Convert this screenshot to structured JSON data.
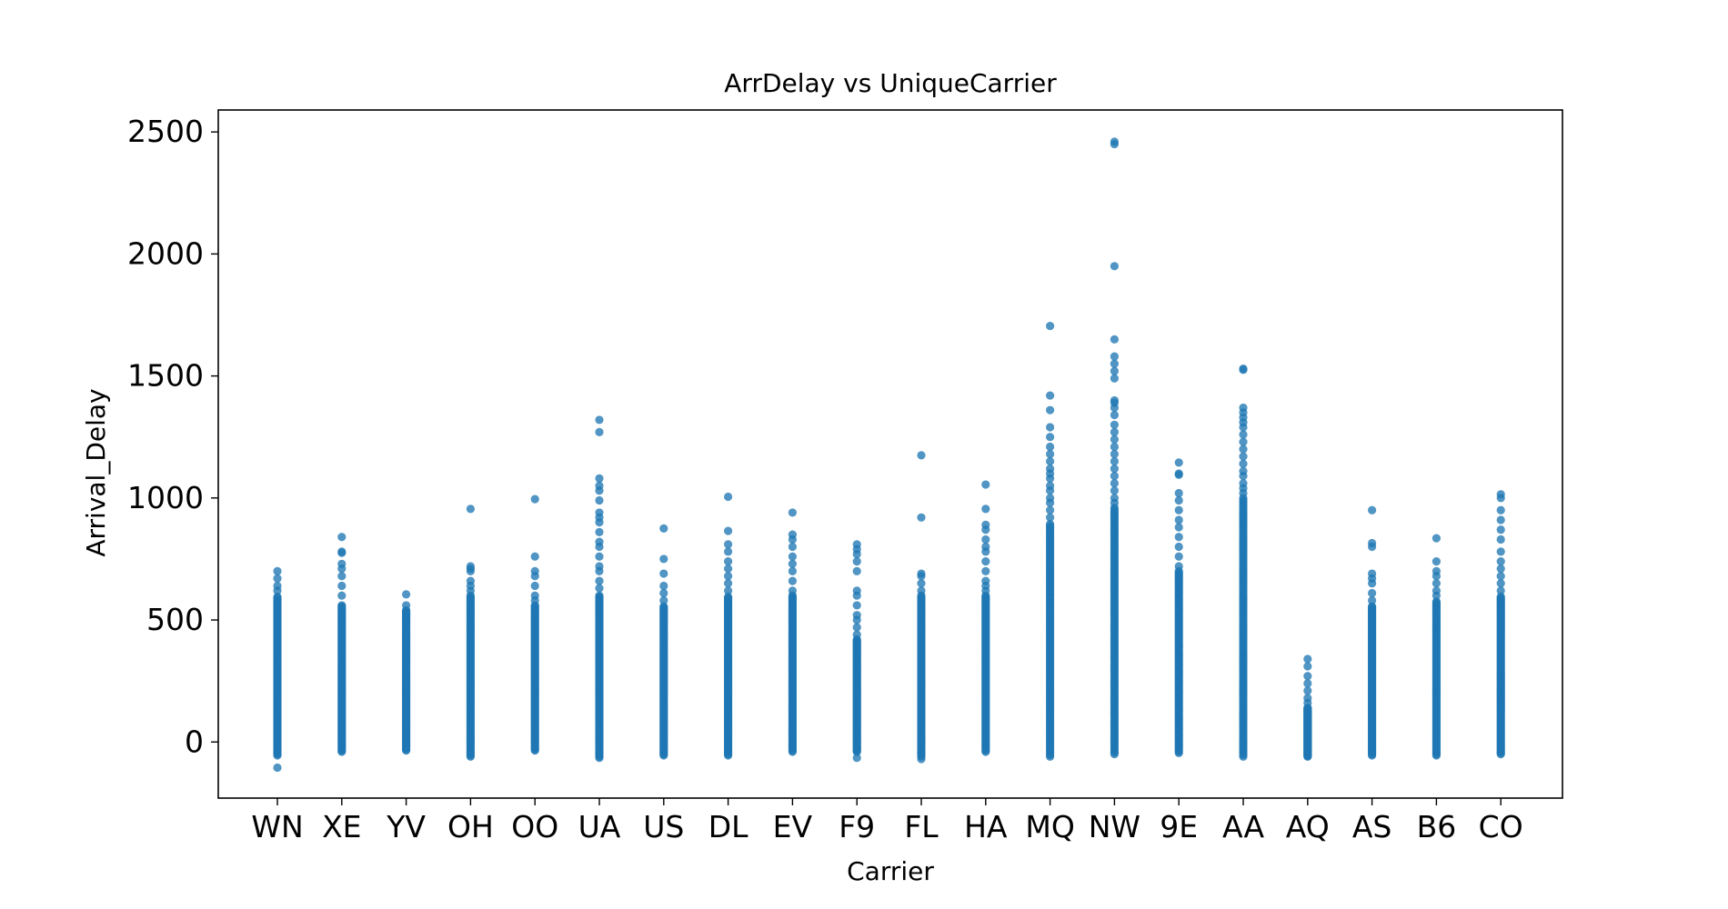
{
  "chart_data": {
    "type": "scatter",
    "title": "ArrDelay vs UniqueCarrier",
    "xlabel": "Carrier",
    "ylabel": "Arrival_Delay",
    "categories": [
      "WN",
      "XE",
      "YV",
      "OH",
      "OO",
      "UA",
      "US",
      "DL",
      "EV",
      "F9",
      "FL",
      "HA",
      "MQ",
      "NW",
      "9E",
      "AA",
      "AQ",
      "AS",
      "B6",
      "CO"
    ],
    "ylim": [
      -230,
      2590
    ],
    "yticks": [
      0,
      500,
      1000,
      1500,
      2000,
      2500
    ],
    "grid": false,
    "legend": "none",
    "series_color": "#1f77b4",
    "marker": "circle",
    "points": {
      "WN": {
        "range": [
          -55,
          600
        ],
        "outliers": [
          -105,
          620,
          640,
          670,
          700
        ]
      },
      "XE": {
        "range": [
          -40,
          560
        ],
        "outliers": [
          600,
          640,
          680,
          710,
          730,
          775,
          780,
          840
        ]
      },
      "YV": {
        "range": [
          -35,
          540
        ],
        "outliers": [
          560,
          605
        ]
      },
      "OH": {
        "range": [
          -60,
          600
        ],
        "outliers": [
          620,
          640,
          660,
          700,
          710,
          720,
          955
        ]
      },
      "OO": {
        "range": [
          -35,
          560
        ],
        "outliers": [
          580,
          600,
          640,
          680,
          700,
          760,
          995
        ]
      },
      "UA": {
        "range": [
          -65,
          600
        ],
        "outliers": [
          630,
          660,
          700,
          720,
          760,
          800,
          820,
          860,
          900,
          920,
          940,
          990,
          1030,
          1050,
          1080,
          1270,
          1320
        ]
      },
      "US": {
        "range": [
          -55,
          560
        ],
        "outliers": [
          580,
          610,
          640,
          690,
          750,
          875
        ]
      },
      "DL": {
        "range": [
          -55,
          600
        ],
        "outliers": [
          620,
          650,
          680,
          710,
          740,
          780,
          810,
          865,
          1005
        ]
      },
      "EV": {
        "range": [
          -40,
          600
        ],
        "outliers": [
          620,
          660,
          700,
          730,
          760,
          800,
          830,
          850,
          940
        ]
      },
      "F9": {
        "range": [
          -40,
          420
        ],
        "outliers": [
          440,
          470,
          500,
          520,
          560,
          600,
          620,
          700,
          740,
          770,
          790,
          810,
          -65
        ]
      },
      "FL": {
        "range": [
          -60,
          600
        ],
        "outliers": [
          620,
          650,
          680,
          690,
          920,
          1175,
          -70
        ]
      },
      "HA": {
        "range": [
          -40,
          600
        ],
        "outliers": [
          620,
          640,
          660,
          700,
          740,
          780,
          800,
          830,
          870,
          890,
          955,
          1055
        ]
      },
      "MQ": {
        "range": [
          -60,
          900
        ],
        "outliers": [
          920,
          950,
          980,
          1000,
          1030,
          1050,
          1080,
          1100,
          1120,
          1150,
          1180,
          1210,
          1250,
          1290,
          1360,
          1420,
          1705
        ]
      },
      "NW": {
        "range": [
          -50,
          960
        ],
        "outliers": [
          980,
          1000,
          1030,
          1060,
          1090,
          1120,
          1150,
          1180,
          1210,
          1240,
          1270,
          1300,
          1340,
          1370,
          1390,
          1400,
          1490,
          1520,
          1550,
          1580,
          1650,
          1950,
          2450,
          2460
        ]
      },
      "9E": {
        "range": [
          -45,
          700
        ],
        "outliers": [
          720,
          760,
          800,
          840,
          880,
          910,
          950,
          990,
          1020,
          1095,
          1100,
          1145
        ]
      },
      "AA": {
        "range": [
          -60,
          1000
        ],
        "outliers": [
          1020,
          1040,
          1060,
          1090,
          1110,
          1140,
          1170,
          1200,
          1230,
          1260,
          1290,
          1310,
          1330,
          1350,
          1370,
          1525,
          1530
        ]
      },
      "AQ": {
        "range": [
          -60,
          140
        ],
        "outliers": [
          160,
          180,
          210,
          240,
          270,
          310,
          340
        ]
      },
      "AS": {
        "range": [
          -55,
          560
        ],
        "outliers": [
          580,
          610,
          650,
          670,
          690,
          800,
          815,
          950
        ]
      },
      "B6": {
        "range": [
          -55,
          580
        ],
        "outliers": [
          600,
          620,
          650,
          680,
          700,
          740,
          835
        ]
      },
      "CO": {
        "range": [
          -50,
          600
        ],
        "outliers": [
          620,
          650,
          680,
          710,
          740,
          780,
          830,
          870,
          910,
          950,
          1000,
          1015
        ]
      }
    }
  }
}
